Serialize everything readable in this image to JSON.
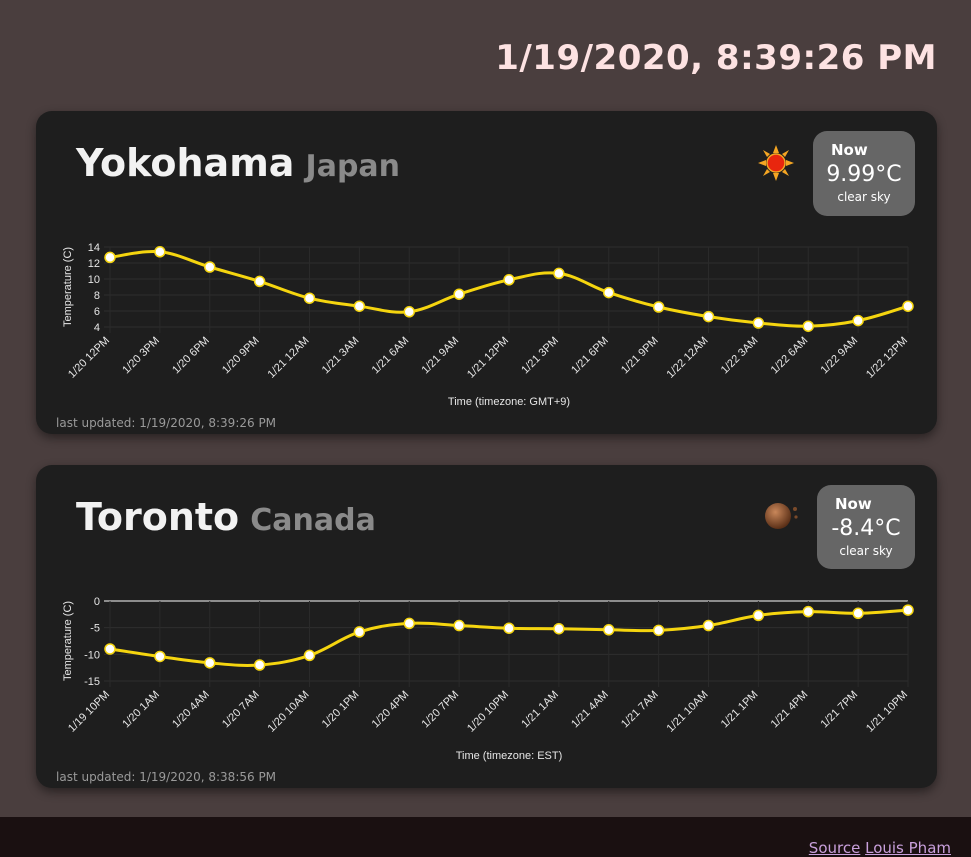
{
  "header": {
    "datetime": "1/19/2020, 8:39:26 PM"
  },
  "cards": [
    {
      "city": "Yokohama",
      "country": "Japan",
      "icon": "sun-icon",
      "now": {
        "label": "Now",
        "temp": "9.99°C",
        "desc": "clear sky"
      },
      "updated": "last updated: 1/19/2020, 8:39:26 PM",
      "chart_data": {
        "type": "line",
        "title": "",
        "xlabel": "Time (timezone:  GMT+9)",
        "ylabel": "Temperature (C)",
        "categories": [
          "1/20 12PM",
          "1/20 3PM",
          "1/20 6PM",
          "1/20 9PM",
          "1/21 12AM",
          "1/21 3AM",
          "1/21 6AM",
          "1/21 9AM",
          "1/21 12PM",
          "1/21 3PM",
          "1/21 6PM",
          "1/21 9PM",
          "1/22 12AM",
          "1/22 3AM",
          "1/22 6AM",
          "1/22 9AM",
          "1/22 12PM"
        ],
        "values": [
          12.7,
          13.4,
          11.5,
          9.7,
          7.6,
          6.6,
          5.9,
          8.1,
          9.9,
          10.7,
          8.3,
          6.5,
          5.3,
          4.5,
          4.1,
          4.8,
          6.6
        ],
        "yticks": [
          4,
          6,
          8,
          10,
          12,
          14
        ],
        "ylim": [
          4,
          14
        ],
        "color": "#f5d50f"
      }
    },
    {
      "city": "Toronto",
      "country": "Canada",
      "icon": "moon-icon",
      "now": {
        "label": "Now",
        "temp": "-8.4°C",
        "desc": "clear sky"
      },
      "updated": "last updated: 1/19/2020, 8:38:56 PM",
      "chart_data": {
        "type": "line",
        "title": "",
        "xlabel": "Time (timezone:  EST)",
        "ylabel": "Temperature (C)",
        "categories": [
          "1/19 10PM",
          "1/20 1AM",
          "1/20 4AM",
          "1/20 7AM",
          "1/20 10AM",
          "1/20 1PM",
          "1/20 4PM",
          "1/20 7PM",
          "1/20 10PM",
          "1/21 1AM",
          "1/21 4AM",
          "1/21 7AM",
          "1/21 10AM",
          "1/21 1PM",
          "1/21 4PM",
          "1/21 7PM",
          "1/21 10PM"
        ],
        "values": [
          -9.0,
          -10.4,
          -11.6,
          -12.0,
          -10.2,
          -5.8,
          -4.2,
          -4.6,
          -5.1,
          -5.2,
          -5.4,
          -5.5,
          -4.6,
          -2.7,
          -2.0,
          -2.3,
          -1.7
        ],
        "yticks": [
          -15,
          -10,
          -5,
          0
        ],
        "ylim": [
          -15,
          0
        ],
        "color": "#f5d50f"
      }
    }
  ],
  "footer": {
    "source_label": "Source",
    "author_label": "Louis Pham"
  }
}
